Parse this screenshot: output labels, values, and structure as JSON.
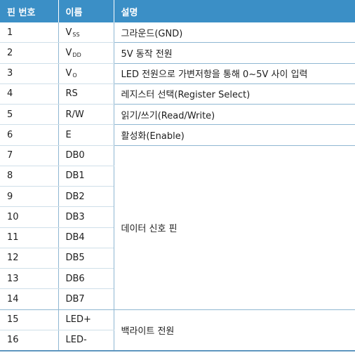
{
  "colors": {
    "header_bg": "#3b8fc6",
    "header_text": "#ffffff",
    "rule": "#8fb7d2"
  },
  "header": {
    "pin": "핀 번호",
    "name": "이름",
    "desc": "설명"
  },
  "rows": [
    {
      "pin": "1",
      "name": "V",
      "sub": "SS",
      "desc": "그라운드(GND)"
    },
    {
      "pin": "2",
      "name": "V",
      "sub": "DD",
      "desc": "5V 동작 전원"
    },
    {
      "pin": "3",
      "name": "V",
      "sub": "O",
      "desc": "LED 전원으로 가변저항을 통해 0~5V 사이 입력"
    },
    {
      "pin": "4",
      "name": "RS",
      "desc": "레지스터 선택(Register Select)"
    },
    {
      "pin": "5",
      "name": "R/W",
      "desc": "읽기/쓰기(Read/Write)"
    },
    {
      "pin": "6",
      "name": "E",
      "desc": "활성화(Enable)"
    },
    {
      "pin": "7",
      "name": "DB0"
    },
    {
      "pin": "8",
      "name": "DB1"
    },
    {
      "pin": "9",
      "name": "DB2"
    },
    {
      "pin": "10",
      "name": "DB3"
    },
    {
      "pin": "11",
      "name": "DB4"
    },
    {
      "pin": "12",
      "name": "DB5"
    },
    {
      "pin": "13",
      "name": "DB6"
    },
    {
      "pin": "14",
      "name": "DB7"
    },
    {
      "pin": "15",
      "name": "LED+"
    },
    {
      "pin": "16",
      "name": "LED-"
    }
  ],
  "merged": {
    "data": "데이터 신호 핀",
    "backlight": "백라이트 전원"
  }
}
